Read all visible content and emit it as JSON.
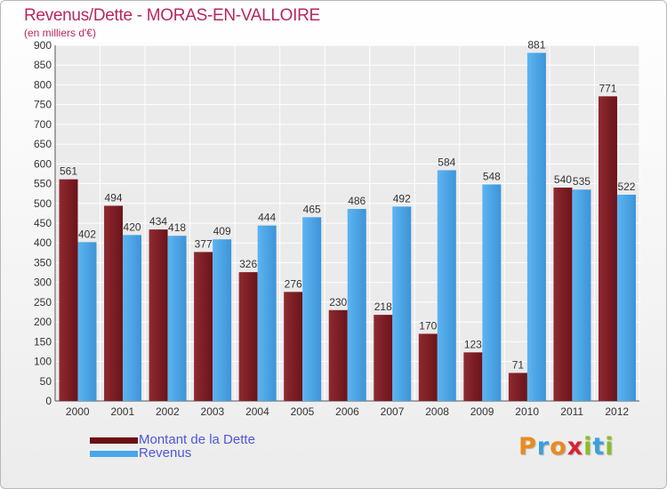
{
  "title": "Revenus/Dette - MORAS-EN-VALLOIRE",
  "subtitle": "(en milliers d'€)",
  "logo": {
    "letters": [
      "P",
      "r",
      "o",
      "x",
      "i",
      "t",
      "i"
    ],
    "colors": [
      "#e98b1f",
      "#3aa0dd",
      "#e98b1f",
      "#d5252f",
      "#8bbd28",
      "#3aa0dd",
      "#8bbd28"
    ]
  },
  "chart_data": {
    "type": "bar",
    "categories": [
      "2000",
      "2001",
      "2002",
      "2003",
      "2004",
      "2005",
      "2006",
      "2007",
      "2008",
      "2009",
      "2010",
      "2011",
      "2012"
    ],
    "series": [
      {
        "name": "Montant de la Dette",
        "color": "#7a1f26",
        "values": [
          561,
          494,
          434,
          377,
          326,
          276,
          230,
          218,
          170,
          123,
          71,
          540,
          771
        ]
      },
      {
        "name": "Revenus",
        "color": "#4aa6e8",
        "values": [
          402,
          420,
          418,
          409,
          444,
          465,
          486,
          492,
          584,
          548,
          881,
          535,
          522
        ]
      }
    ],
    "ylim": [
      0,
      900
    ],
    "yticks": [
      0,
      50,
      100,
      150,
      200,
      250,
      300,
      350,
      400,
      450,
      500,
      550,
      600,
      650,
      700,
      750,
      800,
      850,
      900
    ],
    "grid": true,
    "legend": "bottom-left",
    "data_labels": true
  }
}
